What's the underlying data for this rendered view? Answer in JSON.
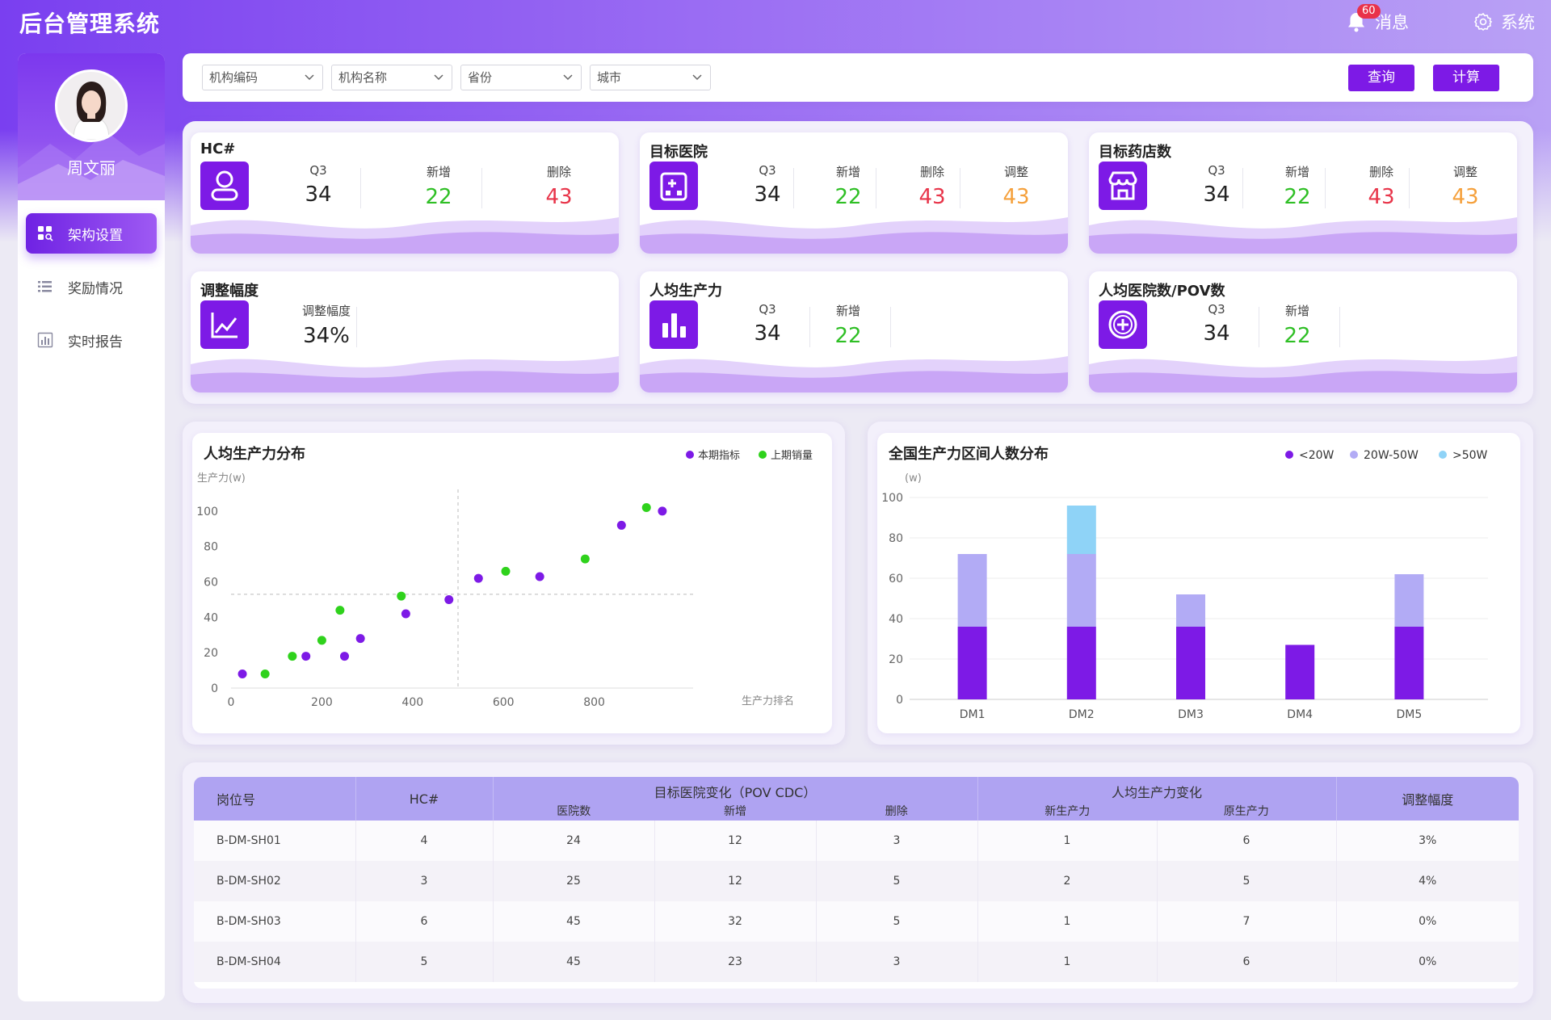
{
  "app": {
    "title": "后台管理系统"
  },
  "header": {
    "notification_count": "60",
    "messages_label": "消息",
    "system_label": "系统"
  },
  "user": {
    "name": "周文丽"
  },
  "sidebar": {
    "items": [
      {
        "label": "架构设置",
        "icon": "grid-search-icon",
        "active": true
      },
      {
        "label": "奖励情况",
        "icon": "list-icon",
        "active": false
      },
      {
        "label": "实时报告",
        "icon": "bar-chart-icon",
        "active": false
      }
    ]
  },
  "filters": {
    "selects": [
      {
        "label": "机构编码"
      },
      {
        "label": "机构名称"
      },
      {
        "label": "省份"
      },
      {
        "label": "城市"
      }
    ],
    "query_button": "查询",
    "calc_button": "计算"
  },
  "stat_cards": [
    {
      "title": "HC#",
      "icon": "user-icon",
      "metrics": [
        {
          "label": "Q3",
          "value": "34",
          "color": "#222222"
        },
        {
          "label": "新增",
          "value": "22",
          "color": "#2fbf25"
        },
        {
          "label": "删除",
          "value": "43",
          "color": "#e8354a"
        }
      ]
    },
    {
      "title": "目标医院",
      "icon": "hospital-icon",
      "metrics": [
        {
          "label": "Q3",
          "value": "34",
          "color": "#222222"
        },
        {
          "label": "新增",
          "value": "22",
          "color": "#2fbf25"
        },
        {
          "label": "删除",
          "value": "43",
          "color": "#e8354a"
        },
        {
          "label": "调整",
          "value": "43",
          "color": "#f5a03b"
        }
      ]
    },
    {
      "title": "目标药店数",
      "icon": "store-icon",
      "metrics": [
        {
          "label": "Q3",
          "value": "34",
          "color": "#222222"
        },
        {
          "label": "新增",
          "value": "22",
          "color": "#2fbf25"
        },
        {
          "label": "删除",
          "value": "43",
          "color": "#e8354a"
        },
        {
          "label": "调整",
          "value": "43",
          "color": "#f5a03b"
        }
      ]
    },
    {
      "title": "调整幅度",
      "icon": "line-chart-icon",
      "metrics": [
        {
          "label": "调整幅度",
          "value": "34%",
          "color": "#222222"
        }
      ]
    },
    {
      "title": "人均生产力",
      "icon": "bar-chart-icon",
      "metrics": [
        {
          "label": "Q3",
          "value": "34",
          "color": "#222222"
        },
        {
          "label": "新增",
          "value": "22",
          "color": "#2fbf25"
        }
      ]
    },
    {
      "title": "人均医院数/POV数",
      "icon": "medical-cross-icon",
      "metrics": [
        {
          "label": "Q3",
          "value": "34",
          "color": "#222222"
        },
        {
          "label": "新增",
          "value": "22",
          "color": "#2fbf25"
        }
      ]
    }
  ],
  "chart_data": [
    {
      "type": "scatter",
      "title": "人均生产力分布",
      "ylabel": "生产力(w)",
      "xlabel": "生产力排名",
      "xlim": [
        0,
        1000
      ],
      "ylim": [
        0,
        110
      ],
      "xticks": [
        0,
        200,
        400,
        600,
        800
      ],
      "yticks": [
        0,
        20,
        40,
        60,
        80,
        100
      ],
      "reference_lines": {
        "x": 500,
        "y": 53
      },
      "legend_position": "top-right",
      "series": [
        {
          "name": "本期指标",
          "color": "#7d1ae6",
          "points": [
            [
              25,
              8
            ],
            [
              165,
              18
            ],
            [
              250,
              18
            ],
            [
              285,
              28
            ],
            [
              385,
              42
            ],
            [
              480,
              50
            ],
            [
              545,
              62
            ],
            [
              680,
              63
            ],
            [
              860,
              92
            ],
            [
              950,
              100
            ]
          ]
        },
        {
          "name": "上期销量",
          "color": "#2fd21c",
          "points": [
            [
              75,
              8
            ],
            [
              135,
              18
            ],
            [
              200,
              27
            ],
            [
              240,
              44
            ],
            [
              375,
              52
            ],
            [
              605,
              66
            ],
            [
              780,
              73
            ],
            [
              915,
              102
            ]
          ]
        }
      ]
    },
    {
      "type": "bar",
      "stacked": true,
      "title": "全国生产力区间人数分布",
      "ylabel": "(w)",
      "categories": [
        "DM1",
        "DM2",
        "DM3",
        "DM4",
        "DM5"
      ],
      "ylim": [
        0,
        100
      ],
      "yticks": [
        0,
        20,
        40,
        60,
        80,
        100
      ],
      "legend_position": "top-right",
      "series": [
        {
          "name": "<20W",
          "color": "#7d1ae6",
          "values": [
            36,
            36,
            36,
            27,
            36
          ]
        },
        {
          "name": "20W-50W",
          "color": "#b2abf5",
          "values": [
            36,
            36,
            16,
            0,
            26
          ]
        },
        {
          "name": ">50W",
          "color": "#8fd3f7",
          "values": [
            0,
            24,
            0,
            0,
            0
          ]
        }
      ]
    }
  ],
  "table": {
    "headers": {
      "post_id": "岗位号",
      "hc": "HC#",
      "hospital_group": "目标医院变化（POV CDC）",
      "hospital_count": "医院数",
      "added": "新增",
      "deleted": "删除",
      "productivity_group": "人均生产力变化",
      "new_productivity": "新生产力",
      "old_productivity": "原生产力",
      "adjustment": "调整幅度"
    },
    "rows": [
      [
        "B-DM-SH01",
        "4",
        "24",
        "12",
        "3",
        "1",
        "6",
        "3%"
      ],
      [
        "B-DM-SH02",
        "3",
        "25",
        "12",
        "5",
        "2",
        "5",
        "4%"
      ],
      [
        "B-DM-SH03",
        "6",
        "45",
        "32",
        "5",
        "1",
        "7",
        "0%"
      ],
      [
        "B-DM-SH04",
        "5",
        "45",
        "23",
        "3",
        "1",
        "6",
        "0%"
      ]
    ]
  }
}
